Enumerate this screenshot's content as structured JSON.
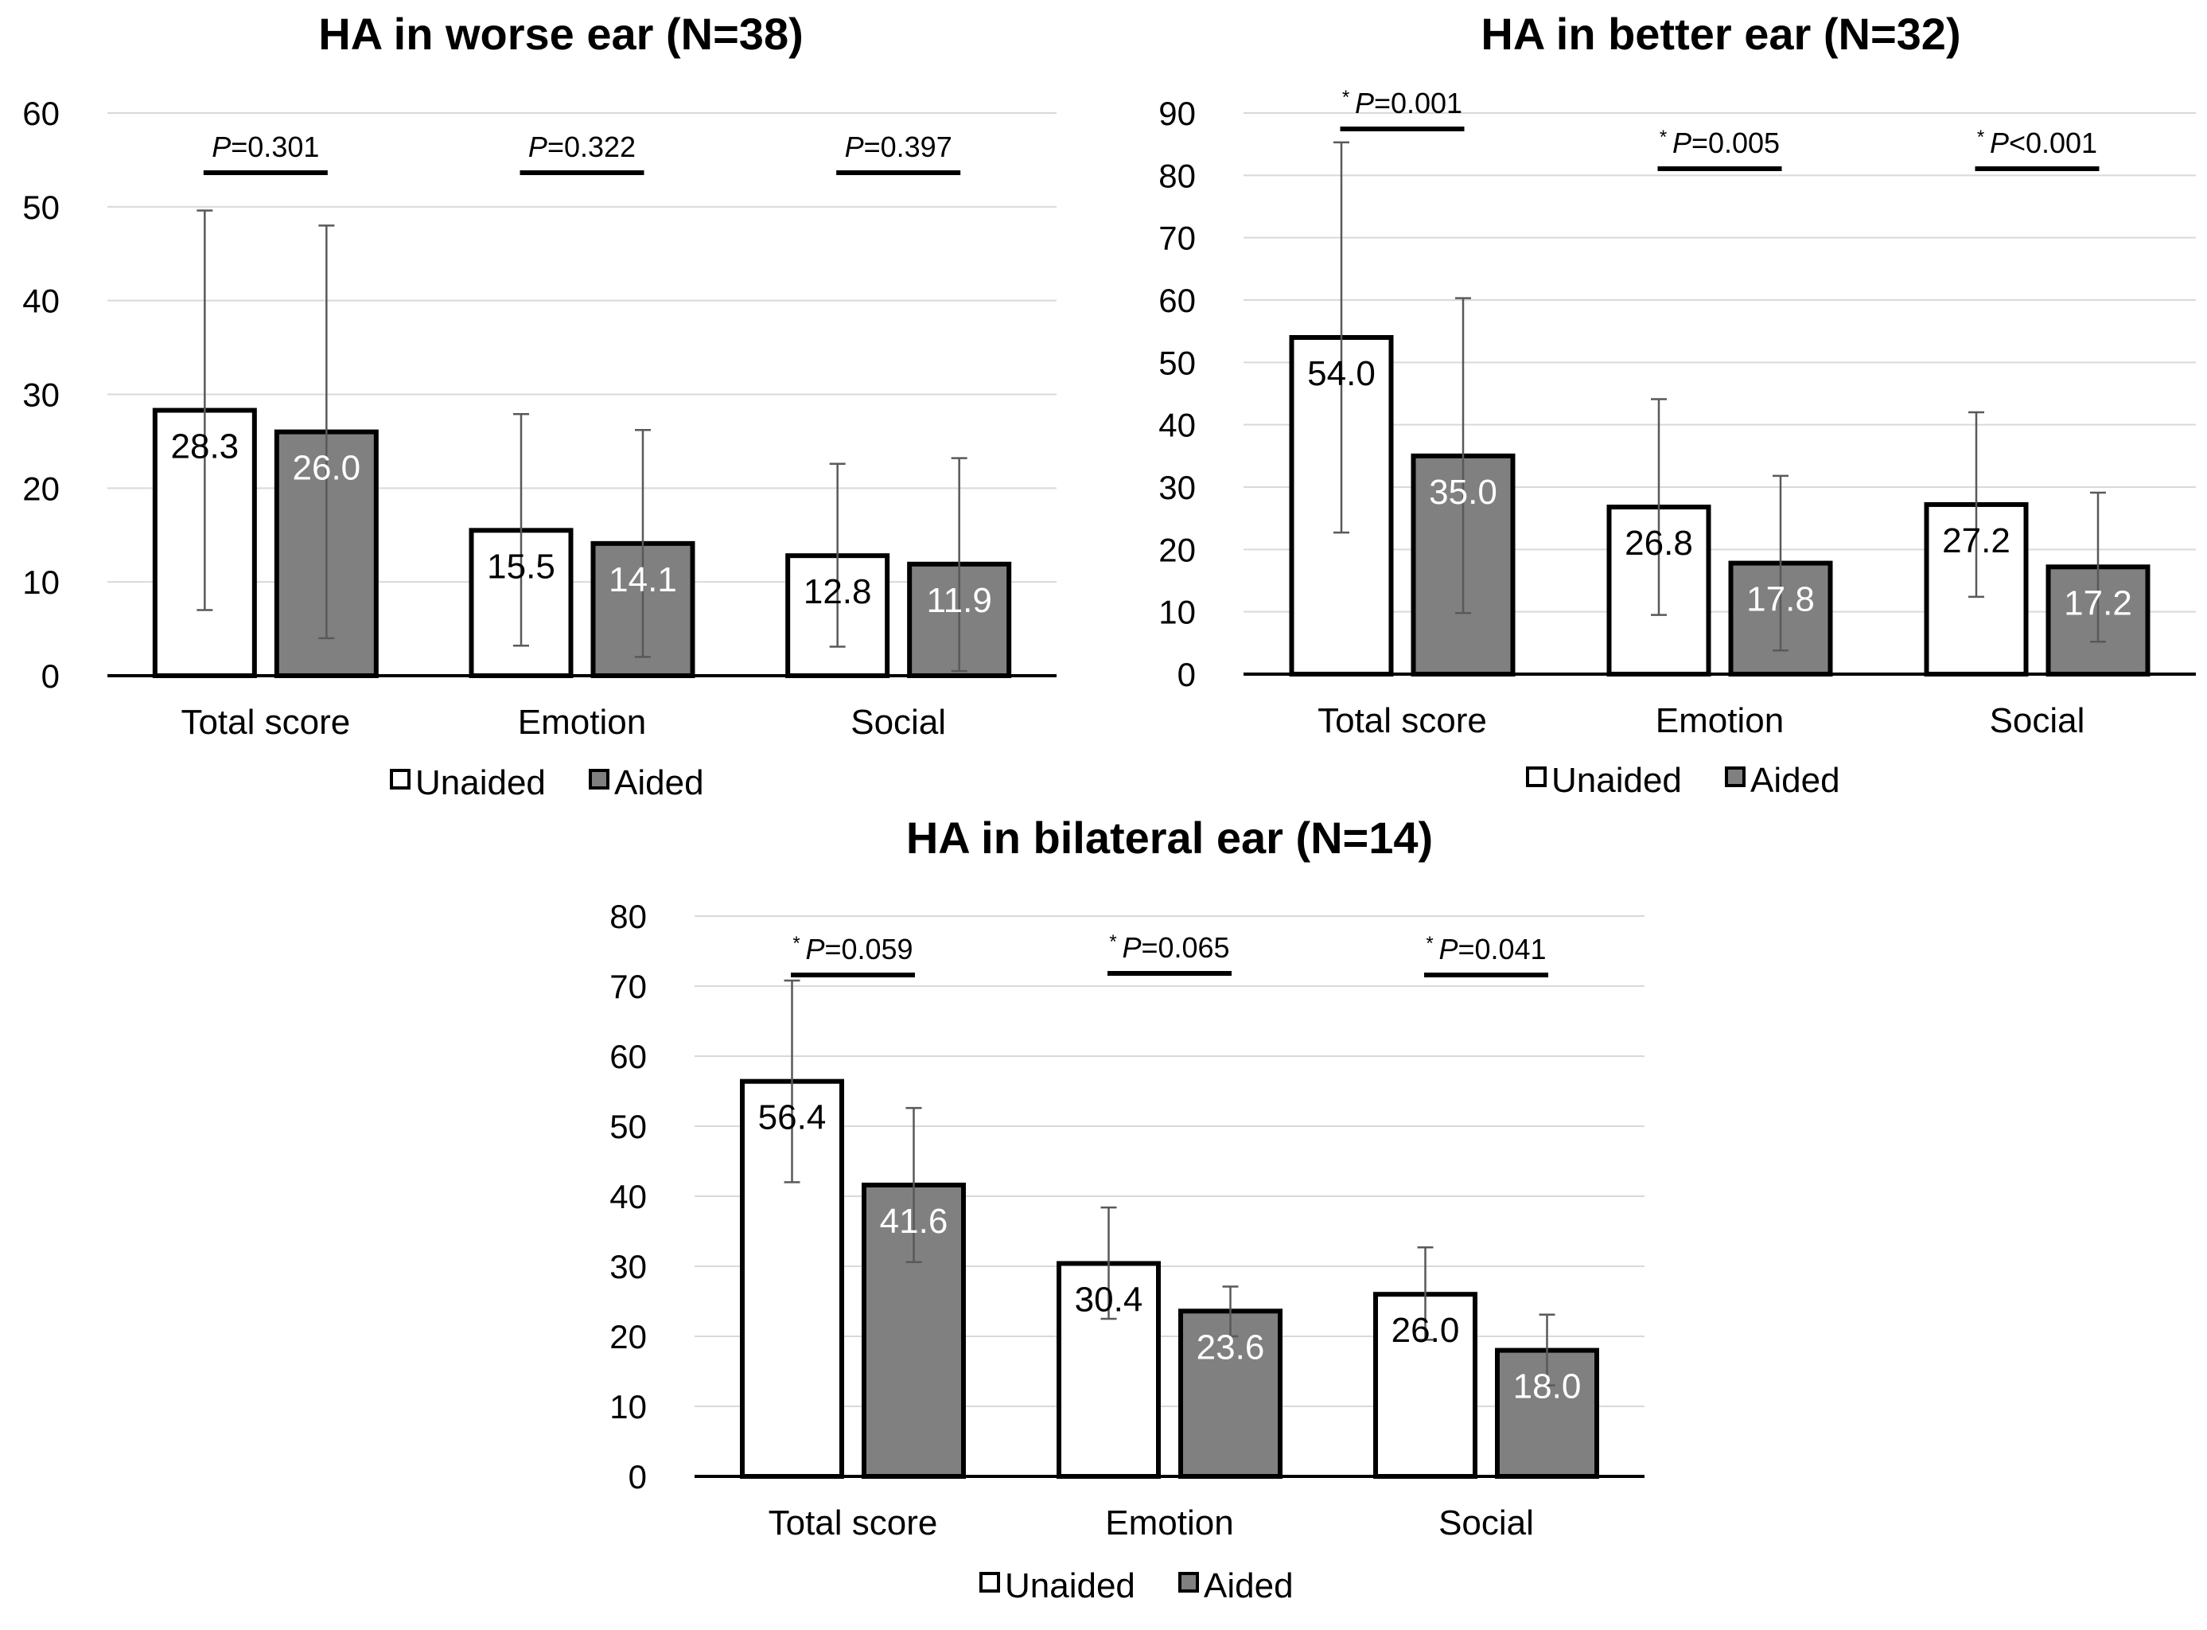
{
  "colors": {
    "unaided": "#ffffff",
    "aided": "#808080",
    "grid": "#d9d9d9",
    "axis": "#000000",
    "errorbar": "#595959"
  },
  "chart_data": [
    {
      "type": "bar",
      "title": "HA in worse ear (N=38)",
      "categories": [
        "Total score",
        "Emotion",
        "Social"
      ],
      "ylim": [
        0,
        60
      ],
      "yticks": [
        "0",
        "10",
        "20",
        "30",
        "40",
        "50",
        "60"
      ],
      "series": [
        {
          "name": "Unaided",
          "values": [
            28.3,
            15.5,
            12.8
          ],
          "labels": [
            "28.3",
            "15.5",
            "12.8"
          ],
          "err_low": [
            7.0,
            3.2,
            3.1
          ],
          "err_high": [
            49.6,
            27.9,
            22.6
          ]
        },
        {
          "name": "Aided",
          "values": [
            26.0,
            14.1,
            11.9
          ],
          "labels": [
            "26.0",
            "14.1",
            "11.9"
          ],
          "err_low": [
            4.0,
            2.0,
            0.5
          ],
          "err_high": [
            48.0,
            26.2,
            23.2
          ]
        }
      ],
      "pvalues": [
        {
          "star": "",
          "label": "P",
          "text": "=0.301"
        },
        {
          "star": "",
          "label": "P",
          "text": "=0.322"
        },
        {
          "star": "",
          "label": "P",
          "text": "=0.397"
        }
      ],
      "grid": true,
      "legend": [
        "Unaided",
        "Aided"
      ],
      "legend_position": "bottom"
    },
    {
      "type": "bar",
      "title": "HA in better ear (N=32)",
      "categories": [
        "Total score",
        "Emotion",
        "Social"
      ],
      "ylim": [
        0,
        90
      ],
      "yticks": [
        "0",
        "10",
        "20",
        "30",
        "40",
        "50",
        "60",
        "70",
        "80",
        "90"
      ],
      "series": [
        {
          "name": "Unaided",
          "values": [
            54.0,
            26.8,
            27.2
          ],
          "labels": [
            "54.0",
            "26.8",
            "27.2"
          ],
          "err_low": [
            22.7,
            9.5,
            12.4
          ],
          "err_high": [
            85.3,
            44.1,
            42.0
          ]
        },
        {
          "name": "Aided",
          "values": [
            35.0,
            17.8,
            17.2
          ],
          "labels": [
            "35.0",
            "17.8",
            "17.2"
          ],
          "err_low": [
            9.8,
            3.8,
            5.2
          ],
          "err_high": [
            60.3,
            31.8,
            29.1
          ]
        }
      ],
      "pvalues": [
        {
          "star": "*",
          "label": "P",
          "text": "=0.001"
        },
        {
          "star": "*",
          "label": "P",
          "text": "=0.005"
        },
        {
          "star": "*",
          "label": "P",
          "text": "<0.001"
        }
      ],
      "grid": true,
      "legend": [
        "Unaided",
        "Aided"
      ],
      "legend_position": "bottom"
    },
    {
      "type": "bar",
      "title": "HA in bilateral ear (N=14)",
      "categories": [
        "Total score",
        "Emotion",
        "Social"
      ],
      "ylim": [
        0,
        80
      ],
      "yticks": [
        "0",
        "10",
        "20",
        "30",
        "40",
        "50",
        "60",
        "70",
        "80"
      ],
      "series": [
        {
          "name": "Unaided",
          "values": [
            56.4,
            30.4,
            26.0
          ],
          "labels": [
            "56.4",
            "30.4",
            "26.0"
          ],
          "err_low": [
            42.0,
            22.5,
            19.5
          ],
          "err_high": [
            70.8,
            38.4,
            32.7
          ]
        },
        {
          "name": "Aided",
          "values": [
            41.6,
            23.6,
            18.0
          ],
          "labels": [
            "41.6",
            "23.6",
            "18.0"
          ],
          "err_low": [
            30.6,
            20.0,
            13.0
          ],
          "err_high": [
            52.6,
            27.1,
            23.1
          ]
        }
      ],
      "pvalues": [
        {
          "star": "*",
          "label": "P",
          "text": "=0.059"
        },
        {
          "star": "*",
          "label": "P",
          "text": "=0.065"
        },
        {
          "star": "*",
          "label": "P",
          "text": "=0.041"
        }
      ],
      "grid": true,
      "legend": [
        "Unaided",
        "Aided"
      ],
      "legend_position": "bottom"
    }
  ]
}
